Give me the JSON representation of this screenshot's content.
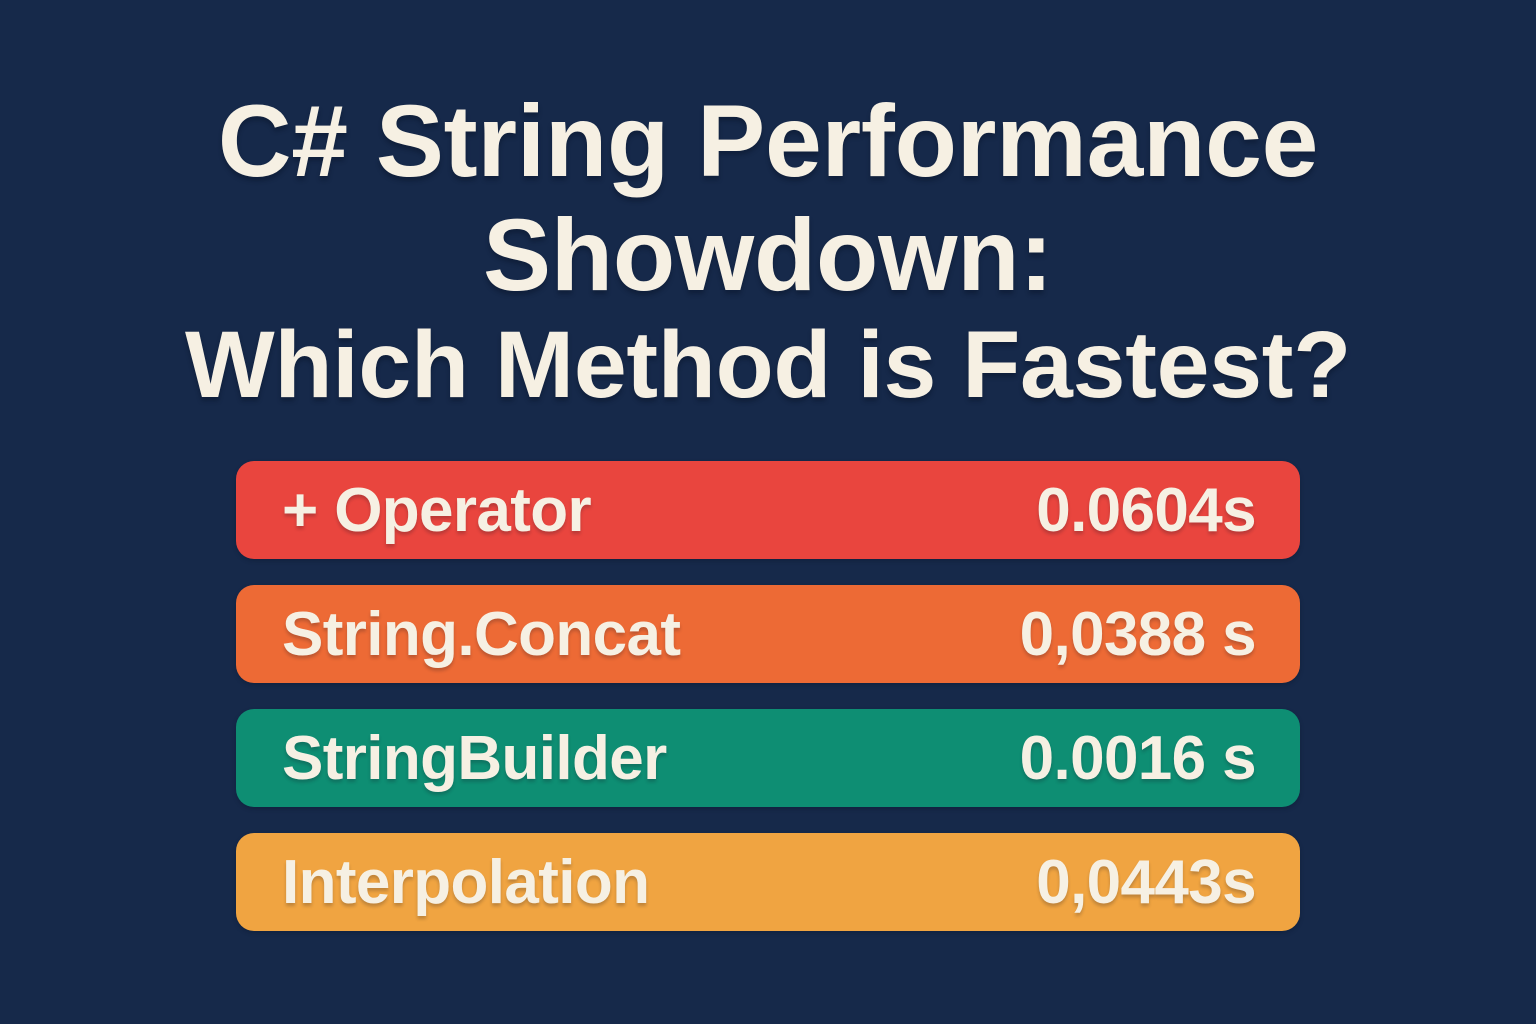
{
  "page": {
    "background": "#16294A",
    "text_color": "#F6F0E3"
  },
  "title": {
    "line1": "C# String Performance",
    "line2": "Showdown:",
    "line3": "Which Method is Fastest?"
  },
  "rows": [
    {
      "label": "+ Operator",
      "value": "0.0604s",
      "color": "#E9453E"
    },
    {
      "label": "String.Concat",
      "value": "0,0388 s",
      "color": "#ED6A35"
    },
    {
      "label": "StringBuilder",
      "value": "0.0016 s",
      "color": "#0E8E73"
    },
    {
      "label": "Interpolation",
      "value": "0,0443s",
      "color": "#F0A441"
    }
  ],
  "chart_data": {
    "type": "bar",
    "orientation": "horizontal",
    "title": "C# String Performance Showdown: Which Method is Fastest?",
    "categories": [
      "+ Operator",
      "String.Concat",
      "StringBuilder",
      "Interpolation"
    ],
    "values": [
      0.0604,
      0.0388,
      0.0016,
      0.0443
    ],
    "value_labels": [
      "0.0604s",
      "0,0388 s",
      "0.0016 s",
      "0,0443s"
    ],
    "unit": "s",
    "colors": [
      "#E9453E",
      "#ED6A35",
      "#0E8E73",
      "#F0A441"
    ],
    "background_color": "#16294A",
    "text_color": "#F6F0E3",
    "legend": false,
    "grid": false,
    "note": "All bars are drawn equal width; timing values are shown as right-aligned text labels inside each bar"
  }
}
